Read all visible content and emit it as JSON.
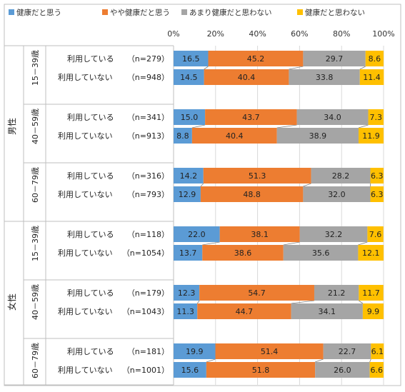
{
  "chart_data": {
    "type": "bar",
    "stacked": true,
    "orientation": "horizontal",
    "xlim": [
      0,
      100
    ],
    "x_ticks": [
      "0%",
      "20%",
      "40%",
      "60%",
      "80%",
      "100%"
    ],
    "grid": true,
    "legend_position": "top",
    "legend": [
      {
        "name": "健康だと思う",
        "color": "#5b9bd5"
      },
      {
        "name": "やや健康だと思う",
        "color": "#ed7d31"
      },
      {
        "name": "あまり健康だと思わない",
        "color": "#a5a5a5"
      },
      {
        "name": "健康だと思わない",
        "color": "#ffc000"
      }
    ],
    "genders": [
      {
        "label": "男性",
        "ages": [
          {
            "label": "15－39歳",
            "rows": [
              {
                "label": "利用している",
                "n": "（n=279）",
                "values": [
                  16.5,
                  45.2,
                  29.7,
                  8.6
                ],
                "texts": [
                  "16.5",
                  "45.2",
                  "29.7",
                  "8.6"
                ]
              },
              {
                "label": "利用していない",
                "n": "（n=948）",
                "values": [
                  14.5,
                  40.4,
                  33.8,
                  11.4
                ],
                "texts": [
                  "14.5",
                  "40.4",
                  "33.8",
                  "11.4"
                ]
              }
            ]
          },
          {
            "label": "40－59歳",
            "rows": [
              {
                "label": "利用している",
                "n": "（n=341）",
                "values": [
                  15.0,
                  43.7,
                  34.0,
                  7.3
                ],
                "texts": [
                  "15.0",
                  "43.7",
                  "34.0",
                  "7.3"
                ]
              },
              {
                "label": "利用していない",
                "n": "（n=913）",
                "values": [
                  8.8,
                  40.4,
                  38.9,
                  11.9
                ],
                "texts": [
                  "8.8",
                  "40.4",
                  "38.9",
                  "11.9"
                ]
              }
            ]
          },
          {
            "label": "60－79歳",
            "rows": [
              {
                "label": "利用している",
                "n": "（n=316）",
                "values": [
                  14.2,
                  51.3,
                  28.2,
                  6.3
                ],
                "texts": [
                  "14.2",
                  "51.3",
                  "28.2",
                  "6.3"
                ]
              },
              {
                "label": "利用していない",
                "n": "（n=793）",
                "values": [
                  12.9,
                  48.8,
                  32.0,
                  6.3
                ],
                "texts": [
                  "12.9",
                  "48.8",
                  "32.0",
                  "6.3"
                ]
              }
            ]
          }
        ]
      },
      {
        "label": "女性",
        "ages": [
          {
            "label": "15－39歳",
            "rows": [
              {
                "label": "利用している",
                "n": "（n=118）",
                "values": [
                  22.0,
                  38.1,
                  32.2,
                  7.6
                ],
                "texts": [
                  "22.0",
                  "38.1",
                  "32.2",
                  "7.6"
                ]
              },
              {
                "label": "利用していない",
                "n": "（n=1054）",
                "values": [
                  13.7,
                  38.6,
                  35.6,
                  12.1
                ],
                "texts": [
                  "13.7",
                  "38.6",
                  "35.6",
                  "12.1"
                ]
              }
            ]
          },
          {
            "label": "40－59歳",
            "rows": [
              {
                "label": "利用している",
                "n": "（n=179）",
                "values": [
                  12.3,
                  54.7,
                  21.2,
                  11.7
                ],
                "texts": [
                  "12.3",
                  "54.7",
                  "21.2",
                  "11.7"
                ]
              },
              {
                "label": "利用していない",
                "n": "（n=1043）",
                "values": [
                  11.3,
                  44.7,
                  34.1,
                  9.9
                ],
                "texts": [
                  "11.3",
                  "44.7",
                  "34.1",
                  "9.9"
                ]
              }
            ]
          },
          {
            "label": "60－79歳",
            "rows": [
              {
                "label": "利用している",
                "n": "（n=181）",
                "values": [
                  19.9,
                  51.4,
                  22.7,
                  6.1
                ],
                "texts": [
                  "19.9",
                  "51.4",
                  "22.7",
                  "6.1"
                ]
              },
              {
                "label": "利用していない",
                "n": "（n=1001）",
                "values": [
                  15.6,
                  51.8,
                  26.0,
                  6.6
                ],
                "texts": [
                  "15.6",
                  "51.8",
                  "26.0",
                  "6.6"
                ]
              }
            ]
          }
        ]
      }
    ]
  }
}
